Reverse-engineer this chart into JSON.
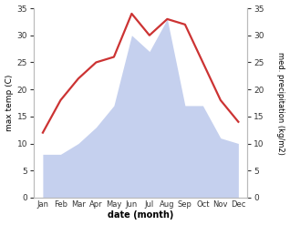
{
  "months": [
    "Jan",
    "Feb",
    "Mar",
    "Apr",
    "May",
    "Jun",
    "Jul",
    "Aug",
    "Sep",
    "Oct",
    "Nov",
    "Dec"
  ],
  "temperature": [
    12,
    18,
    22,
    25,
    26,
    34,
    30,
    33,
    32,
    25,
    18,
    14
  ],
  "precipitation": [
    8,
    8,
    10,
    13,
    17,
    30,
    27,
    33,
    17,
    17,
    11,
    10
  ],
  "temp_color": "#cc3333",
  "precip_color": "#c5d0ee",
  "ylabel_left": "max temp (C)",
  "ylabel_right": "med. precipitation (kg/m2)",
  "xlabel": "date (month)",
  "ylim_left": [
    0,
    35
  ],
  "ylim_right": [
    0,
    35
  ],
  "yticks": [
    0,
    5,
    10,
    15,
    20,
    25,
    30,
    35
  ],
  "background_color": "#ffffff",
  "line_width": 1.6
}
